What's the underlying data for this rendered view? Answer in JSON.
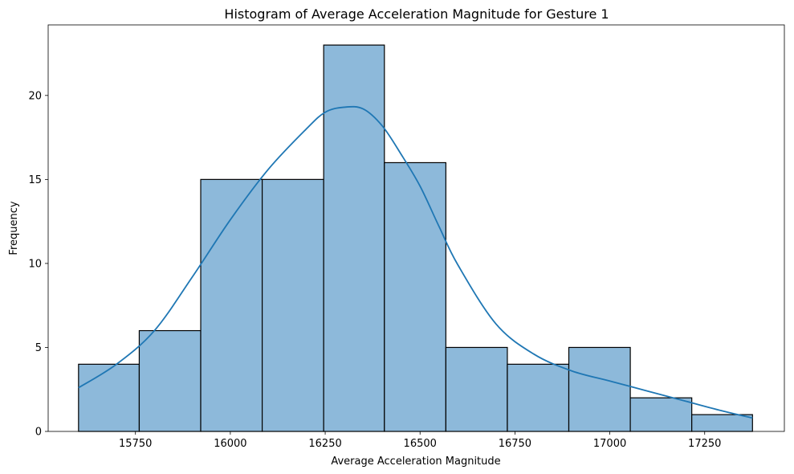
{
  "chart_data": {
    "type": "bar",
    "title": "Histogram of Average Acceleration Magnitude for Gesture 1",
    "xlabel": "Average Acceleration Magnitude",
    "ylabel": "Frequency",
    "xlim": [
      15520,
      17460
    ],
    "ylim": [
      0,
      24.2
    ],
    "x_ticks": [
      15750,
      16000,
      16250,
      16500,
      16750,
      17000,
      17250
    ],
    "y_ticks": [
      0,
      5,
      10,
      15,
      20
    ],
    "bins": [
      {
        "start": 15600,
        "end": 15760,
        "count": 4
      },
      {
        "start": 15760,
        "end": 15922,
        "count": 6
      },
      {
        "start": 15922,
        "end": 16084,
        "count": 15
      },
      {
        "start": 16084,
        "end": 16246,
        "count": 15
      },
      {
        "start": 16246,
        "end": 16406,
        "count": 23
      },
      {
        "start": 16406,
        "end": 16568,
        "count": 16
      },
      {
        "start": 16568,
        "end": 16730,
        "count": 5
      },
      {
        "start": 16730,
        "end": 16892,
        "count": 4
      },
      {
        "start": 16892,
        "end": 17054,
        "count": 5
      },
      {
        "start": 17054,
        "end": 17216,
        "count": 2
      },
      {
        "start": 17216,
        "end": 17376,
        "count": 1
      }
    ],
    "kde": {
      "x": [
        15600,
        15700,
        15800,
        15900,
        16000,
        16100,
        16200,
        16250,
        16300,
        16350,
        16400,
        16450,
        16500,
        16550,
        16600,
        16700,
        16800,
        16900,
        17000,
        17100,
        17200,
        17300,
        17376
      ],
      "y": [
        2.6,
        4.0,
        6.0,
        9.2,
        12.6,
        15.6,
        18.0,
        19.0,
        19.3,
        19.2,
        18.2,
        16.5,
        14.6,
        12.2,
        9.9,
        6.4,
        4.6,
        3.6,
        3.0,
        2.4,
        1.8,
        1.2,
        0.8
      ]
    },
    "colors": {
      "bar_fill": "#8db9da",
      "bar_edge": "#000000",
      "kde_line": "#1f77b4"
    },
    "grid": false,
    "legend": "none"
  }
}
